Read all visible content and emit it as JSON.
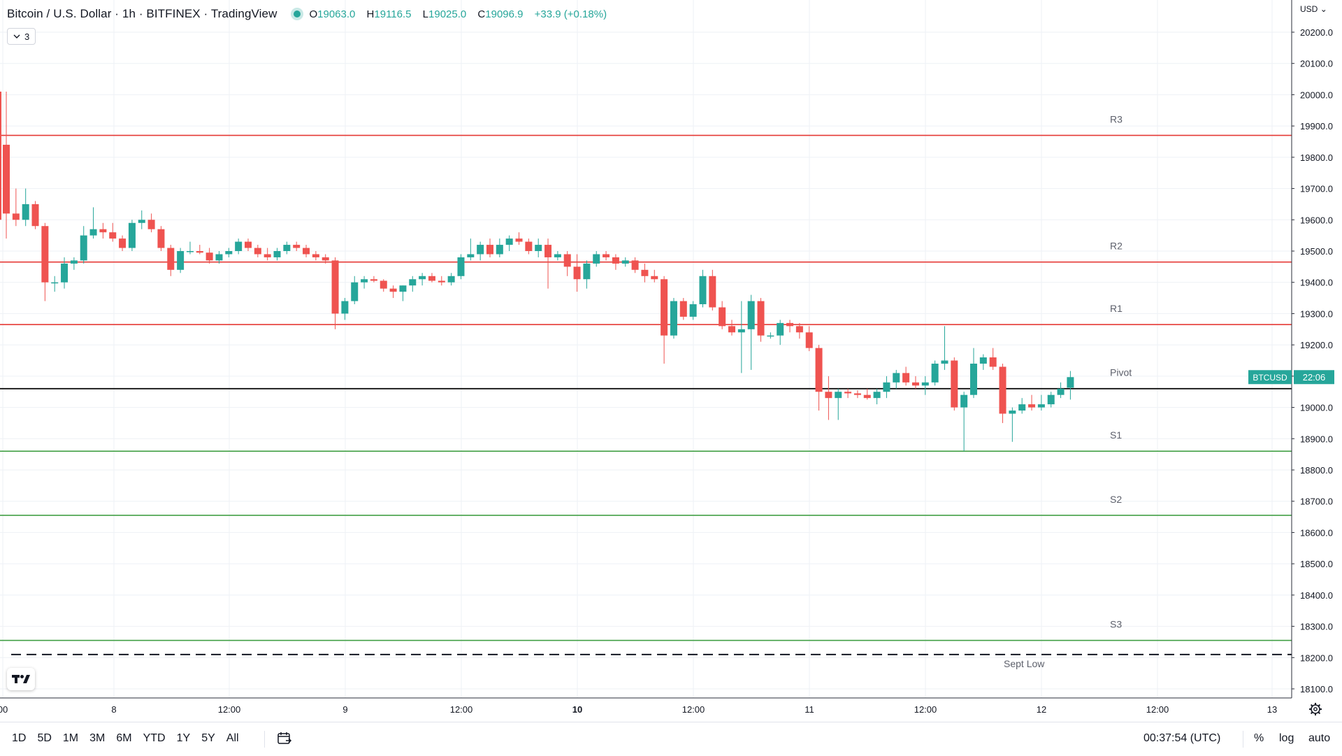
{
  "header": {
    "symbol_title": "Bitcoin / U.S. Dollar · 1h · BITFINEX · TradingView",
    "ohlc": {
      "o_label": "O",
      "o_value": "19063.0",
      "h_label": "H",
      "h_value": "19116.5",
      "l_label": "L",
      "l_value": "19025.0",
      "c_label": "C",
      "c_value": "19096.9",
      "change": "+33.9 (+0.18%)"
    },
    "collapse_count": "3",
    "currency_label": "USD"
  },
  "colors": {
    "bull": "#26a69a",
    "bear": "#ef5350",
    "resistance": "#e53935",
    "support": "#43a047",
    "pivot": "#000000",
    "grid": "#eef1f6"
  },
  "icons": [
    "tradingview-logo-icon",
    "calendar-range-icon",
    "settings-gear-icon",
    "chevron-down-icon"
  ],
  "chart_data": {
    "type": "candlestick",
    "ylim": [
      18050,
      20350
    ],
    "price_axis": {
      "ticks": [
        "20200.0",
        "20100.0",
        "20000.0",
        "19900.0",
        "19800.0",
        "19700.0",
        "19600.0",
        "19500.0",
        "19400.0",
        "19300.0",
        "19200.0",
        "19100.0",
        "19000.0",
        "18900.0",
        "18800.0",
        "18700.0",
        "18600.0",
        "18500.0",
        "18400.0",
        "18300.0",
        "18200.0",
        "18100.0"
      ],
      "tick_values": [
        20200,
        20100,
        20000,
        19900,
        19800,
        19700,
        19600,
        19500,
        19400,
        19300,
        19200,
        19100,
        19000,
        18900,
        18800,
        18700,
        18600,
        18500,
        18400,
        18300,
        18200,
        18100
      ]
    },
    "time_axis": {
      "labels": [
        "00",
        "8",
        "12:00",
        "9",
        "12:00",
        "10",
        "12:00",
        "11",
        "12:00",
        "12",
        "12:00",
        "13"
      ],
      "bold": [
        false,
        false,
        false,
        false,
        false,
        true,
        false,
        false,
        false,
        false,
        false,
        false
      ]
    },
    "levels": [
      {
        "label": "R3",
        "value": 19870,
        "kind": "resistance"
      },
      {
        "label": "R2",
        "value": 19465,
        "kind": "resistance"
      },
      {
        "label": "R1",
        "value": 19265,
        "kind": "resistance"
      },
      {
        "label": "Pivot",
        "value": 19060,
        "kind": "pivot"
      },
      {
        "label": "S1",
        "value": 18860,
        "kind": "support"
      },
      {
        "label": "S2",
        "value": 18655,
        "kind": "support"
      },
      {
        "label": "S3",
        "value": 18255,
        "kind": "support"
      },
      {
        "label": "Sept Low",
        "value": 18210,
        "kind": "dashed"
      }
    ],
    "last_price": {
      "symbol": "BTCUSD",
      "countdown": "22:06",
      "value": 19096.9
    },
    "candles": [
      [
        19840,
        20010,
        19540,
        19620
      ],
      [
        19620,
        19700,
        19580,
        19600
      ],
      [
        19600,
        19700,
        19580,
        19650
      ],
      [
        19650,
        19660,
        19570,
        19580
      ],
      [
        19580,
        19590,
        19340,
        19400
      ],
      [
        19400,
        19420,
        19370,
        19400
      ],
      [
        19400,
        19480,
        19380,
        19460
      ],
      [
        19460,
        19480,
        19440,
        19470
      ],
      [
        19470,
        19580,
        19460,
        19550
      ],
      [
        19550,
        19640,
        19540,
        19570
      ],
      [
        19570,
        19590,
        19540,
        19560
      ],
      [
        19560,
        19590,
        19530,
        19540
      ],
      [
        19540,
        19550,
        19500,
        19510
      ],
      [
        19510,
        19600,
        19500,
        19590
      ],
      [
        19590,
        19630,
        19570,
        19600
      ],
      [
        19600,
        19620,
        19560,
        19570
      ],
      [
        19570,
        19580,
        19500,
        19510
      ],
      [
        19510,
        19520,
        19420,
        19440
      ],
      [
        19440,
        19510,
        19430,
        19500
      ],
      [
        19500,
        19530,
        19490,
        19500
      ],
      [
        19500,
        19520,
        19490,
        19495
      ],
      [
        19495,
        19510,
        19460,
        19470
      ],
      [
        19470,
        19500,
        19460,
        19490
      ],
      [
        19490,
        19510,
        19480,
        19500
      ],
      [
        19500,
        19540,
        19490,
        19530
      ],
      [
        19530,
        19540,
        19500,
        19510
      ],
      [
        19510,
        19520,
        19480,
        19490
      ],
      [
        19490,
        19510,
        19470,
        19480
      ],
      [
        19480,
        19510,
        19470,
        19500
      ],
      [
        19500,
        19530,
        19490,
        19520
      ],
      [
        19520,
        19530,
        19500,
        19510
      ],
      [
        19510,
        19520,
        19480,
        19490
      ],
      [
        19490,
        19500,
        19470,
        19480
      ],
      [
        19480,
        19490,
        19460,
        19470
      ],
      [
        19470,
        19480,
        19250,
        19300
      ],
      [
        19300,
        19350,
        19280,
        19340
      ],
      [
        19340,
        19420,
        19330,
        19400
      ],
      [
        19400,
        19420,
        19380,
        19410
      ],
      [
        19410,
        19420,
        19400,
        19405
      ],
      [
        19405,
        19410,
        19370,
        19380
      ],
      [
        19380,
        19390,
        19350,
        19370
      ],
      [
        19370,
        19390,
        19340,
        19390
      ],
      [
        19390,
        19420,
        19370,
        19410
      ],
      [
        19410,
        19430,
        19390,
        19420
      ],
      [
        19420,
        19430,
        19400,
        19405
      ],
      [
        19405,
        19420,
        19390,
        19400
      ],
      [
        19400,
        19430,
        19390,
        19420
      ],
      [
        19420,
        19490,
        19410,
        19480
      ],
      [
        19480,
        19540,
        19470,
        19490
      ],
      [
        19490,
        19530,
        19470,
        19520
      ],
      [
        19520,
        19540,
        19480,
        19490
      ],
      [
        19490,
        19540,
        19480,
        19520
      ],
      [
        19520,
        19550,
        19500,
        19540
      ],
      [
        19540,
        19560,
        19520,
        19530
      ],
      [
        19530,
        19540,
        19490,
        19500
      ],
      [
        19500,
        19540,
        19480,
        19520
      ],
      [
        19520,
        19540,
        19380,
        19480
      ],
      [
        19480,
        19500,
        19470,
        19490
      ],
      [
        19490,
        19500,
        19420,
        19450
      ],
      [
        19450,
        19490,
        19370,
        19410
      ],
      [
        19410,
        19470,
        19380,
        19460
      ],
      [
        19460,
        19500,
        19450,
        19490
      ],
      [
        19490,
        19500,
        19470,
        19480
      ],
      [
        19480,
        19490,
        19440,
        19460
      ],
      [
        19460,
        19480,
        19450,
        19470
      ],
      [
        19470,
        19480,
        19430,
        19440
      ],
      [
        19440,
        19460,
        19400,
        19420
      ],
      [
        19420,
        19440,
        19400,
        19410
      ],
      [
        19410,
        19420,
        19140,
        19230
      ],
      [
        19230,
        19350,
        19220,
        19340
      ],
      [
        19340,
        19350,
        19280,
        19290
      ],
      [
        19290,
        19340,
        19280,
        19330
      ],
      [
        19330,
        19440,
        19320,
        19420
      ],
      [
        19420,
        19440,
        19310,
        19320
      ],
      [
        19320,
        19340,
        19250,
        19260
      ],
      [
        19260,
        19280,
        19230,
        19240
      ],
      [
        19240,
        19340,
        19110,
        19250
      ],
      [
        19250,
        19360,
        19120,
        19340
      ],
      [
        19340,
        19350,
        19210,
        19230
      ],
      [
        19230,
        19240,
        19220,
        19230
      ],
      [
        19230,
        19280,
        19200,
        19270
      ],
      [
        19270,
        19280,
        19240,
        19260
      ],
      [
        19260,
        19270,
        19220,
        19240
      ],
      [
        19240,
        19260,
        19180,
        19190
      ],
      [
        19190,
        19200,
        18990,
        19050
      ],
      [
        19050,
        19100,
        18960,
        19030
      ],
      [
        19030,
        19060,
        18960,
        19050
      ],
      [
        19050,
        19060,
        19030,
        19045
      ],
      [
        19045,
        19055,
        19030,
        19040
      ],
      [
        19040,
        19060,
        19025,
        19030
      ],
      [
        19030,
        19060,
        19010,
        19050
      ],
      [
        19050,
        19100,
        19030,
        19080
      ],
      [
        19080,
        19120,
        19060,
        19110
      ],
      [
        19110,
        19130,
        19070,
        19080
      ],
      [
        19080,
        19100,
        19060,
        19070
      ],
      [
        19070,
        19100,
        19040,
        19080
      ],
      [
        19080,
        19150,
        19070,
        19140
      ],
      [
        19140,
        19260,
        19120,
        19150
      ],
      [
        19150,
        19160,
        18990,
        19000
      ],
      [
        19000,
        19050,
        18860,
        19040
      ],
      [
        19040,
        19190,
        19030,
        19140
      ],
      [
        19140,
        19170,
        19120,
        19160
      ],
      [
        19160,
        19190,
        19120,
        19130
      ],
      [
        19130,
        19140,
        18950,
        18980
      ],
      [
        18980,
        19000,
        18890,
        18990
      ],
      [
        18990,
        19030,
        18980,
        19010
      ],
      [
        19010,
        19040,
        18990,
        19000
      ],
      [
        19000,
        19040,
        18990,
        19010
      ],
      [
        19010,
        19050,
        19000,
        19040
      ],
      [
        19040,
        19080,
        19030,
        19060
      ],
      [
        19063,
        19116.5,
        19025,
        19096.9
      ]
    ]
  },
  "time_range": {
    "buttons": [
      "1D",
      "5D",
      "1M",
      "3M",
      "6M",
      "YTD",
      "1Y",
      "5Y",
      "All"
    ]
  },
  "footer": {
    "clock": "00:37:54 (UTC)",
    "percent_label": "%",
    "log_label": "log",
    "auto_label": "auto"
  }
}
